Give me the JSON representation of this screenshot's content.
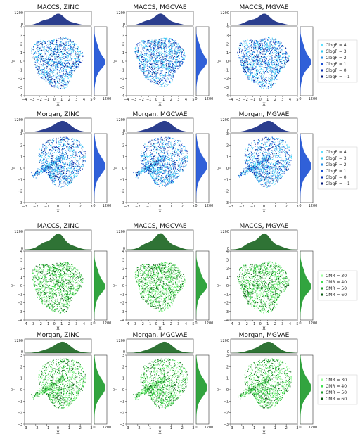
{
  "chart_data": [
    {
      "type": "scatter",
      "title": "MACCS, ZINC",
      "xlabel": "X",
      "ylabel": "Y",
      "xticks": [
        "−4",
        "−3",
        "−2",
        "−1",
        "0",
        "1",
        "2",
        "3",
        "4",
        "5"
      ],
      "yticks": [
        "−4",
        "−3",
        "−2",
        "−1",
        "0",
        "1",
        "2",
        "3",
        "4"
      ],
      "xlim": [
        -4,
        5
      ],
      "ylim": [
        -4,
        4.6
      ],
      "hist_ticks": [
        "0",
        "1200"
      ],
      "legend": [
        "ClogP = 4",
        "ClogP = 3",
        "ClogP = 2",
        "ClogP = 1",
        "ClogP = 0",
        "ClogP = −1"
      ],
      "colors": [
        "#5fe0ff",
        "#2fc9f2",
        "#2a8ee6",
        "#1a4fd4",
        "#0b2fb0",
        "#061c7a"
      ],
      "cloud": {
        "shape": "blob",
        "cx": 0.3,
        "cy": 0.4,
        "rx": 3.3,
        "ry": 3.1
      }
    },
    {
      "type": "scatter",
      "title": "MACCS, MGCVAE",
      "xlabel": "X",
      "ylabel": "Y",
      "xticks": [
        "−4",
        "−3",
        "−2",
        "−1",
        "0",
        "1",
        "2",
        "3",
        "4",
        "5"
      ],
      "yticks": [
        "−4",
        "−3",
        "−2",
        "−1",
        "0",
        "1",
        "2",
        "3",
        "4"
      ],
      "xlim": [
        -4,
        5
      ],
      "ylim": [
        -4,
        4.6
      ],
      "hist_ticks": [
        "0",
        "1200"
      ],
      "legend": [],
      "colors": [
        "#5fe0ff",
        "#2fc9f2",
        "#2a8ee6",
        "#1a4fd4",
        "#0b2fb0",
        "#061c7a"
      ],
      "cloud": {
        "shape": "blob",
        "cx": 0.4,
        "cy": 0.5,
        "rx": 3.2,
        "ry": 3.0
      }
    },
    {
      "type": "scatter",
      "title": "MACCS, MGVAE",
      "xlabel": "X",
      "ylabel": "Y",
      "xticks": [
        "−4",
        "−3",
        "−2",
        "−1",
        "0",
        "1",
        "2",
        "3",
        "4",
        "5"
      ],
      "yticks": [
        "−4",
        "−3",
        "−2",
        "−1",
        "0",
        "1",
        "2",
        "3",
        "4"
      ],
      "xlim": [
        -4,
        5
      ],
      "ylim": [
        -4,
        4.6
      ],
      "hist_ticks": [
        "0",
        "1200"
      ],
      "legend": [],
      "colors": [
        "#5fe0ff",
        "#2fc9f2",
        "#2a8ee6",
        "#1a4fd4",
        "#0b2fb0",
        "#061c7a"
      ],
      "cloud": {
        "shape": "blob",
        "cx": 0.3,
        "cy": 0.4,
        "rx": 3.3,
        "ry": 3.1
      }
    },
    {
      "type": "scatter",
      "title": "Morgan, ZINC",
      "xlabel": "X",
      "ylabel": "Y",
      "xticks": [
        "−3",
        "−2",
        "−1",
        "0",
        "1",
        "2",
        "3"
      ],
      "yticks": [
        "−3",
        "−2",
        "−1",
        "0",
        "1",
        "2",
        "3"
      ],
      "xlim": [
        -3,
        3
      ],
      "ylim": [
        -3,
        3
      ],
      "hist_ticks": [
        "0",
        "1200"
      ],
      "legend": [
        "ClogP = 4",
        "ClogP = 3",
        "ClogP = 2",
        "ClogP = 1",
        "ClogP = 0",
        "ClogP = −1"
      ],
      "colors": [
        "#5fe0ff",
        "#2fc9f2",
        "#2a8ee6",
        "#1a4fd4",
        "#0b2fb0",
        "#061c7a"
      ],
      "cloud": {
        "shape": "kite",
        "cx": 0.2,
        "cy": 0.3,
        "rx": 2.2,
        "ry": 2.3
      }
    },
    {
      "type": "scatter",
      "title": "Morgan, MGCVAE",
      "xlabel": "X",
      "ylabel": "Y",
      "xticks": [
        "−3",
        "−2",
        "−1",
        "0",
        "1",
        "2",
        "3"
      ],
      "yticks": [
        "−3",
        "−2",
        "−1",
        "0",
        "1",
        "2",
        "3"
      ],
      "xlim": [
        -3,
        3
      ],
      "ylim": [
        -3,
        3
      ],
      "hist_ticks": [
        "0",
        "1200"
      ],
      "legend": [],
      "colors": [
        "#5fe0ff",
        "#2fc9f2",
        "#2a8ee6",
        "#1a4fd4",
        "#0b2fb0",
        "#061c7a"
      ],
      "cloud": {
        "shape": "kite",
        "cx": 0.2,
        "cy": 0.3,
        "rx": 2.2,
        "ry": 2.3
      }
    },
    {
      "type": "scatter",
      "title": "Morgan, MGVAE",
      "xlabel": "X",
      "ylabel": "Y",
      "xticks": [
        "−3",
        "−2",
        "−1",
        "0",
        "1",
        "2",
        "3"
      ],
      "yticks": [
        "−3",
        "−2",
        "−1",
        "0",
        "1",
        "2",
        "3"
      ],
      "xlim": [
        -3,
        3
      ],
      "ylim": [
        -3,
        3
      ],
      "hist_ticks": [
        "0",
        "1200"
      ],
      "legend": [],
      "colors": [
        "#5fe0ff",
        "#2fc9f2",
        "#2a8ee6",
        "#1a4fd4",
        "#0b2fb0",
        "#061c7a"
      ],
      "cloud": {
        "shape": "kite",
        "cx": 0.2,
        "cy": 0.3,
        "rx": 2.2,
        "ry": 2.3
      }
    },
    {
      "type": "scatter",
      "title": "MACCS, ZINC",
      "xlabel": "X",
      "ylabel": "Y",
      "xticks": [
        "−4",
        "−3",
        "−2",
        "−1",
        "0",
        "1",
        "2",
        "3",
        "4",
        "5"
      ],
      "yticks": [
        "−4",
        "−3",
        "−2",
        "−1",
        "0",
        "1",
        "2",
        "3",
        "4"
      ],
      "xlim": [
        -4,
        5
      ],
      "ylim": [
        -4,
        4.6
      ],
      "hist_ticks": [
        "0",
        "1200"
      ],
      "legend": [
        "CMR = 30",
        "CMR = 40",
        "CMR = 50",
        "CMR = 60"
      ],
      "colors": [
        "#9dff9d",
        "#3fe04f",
        "#1c9a2a",
        "#0a5a12"
      ],
      "cloud": {
        "shape": "blob",
        "cx": 0.3,
        "cy": 0.4,
        "rx": 3.3,
        "ry": 3.1
      }
    },
    {
      "type": "scatter",
      "title": "MACCS, MGCVAE",
      "xlabel": "X",
      "ylabel": "Y",
      "xticks": [
        "−4",
        "−3",
        "−2",
        "−1",
        "0",
        "1",
        "2",
        "3",
        "4",
        "5"
      ],
      "yticks": [
        "−4",
        "−3",
        "−2",
        "−1",
        "0",
        "1",
        "2",
        "3",
        "4"
      ],
      "xlim": [
        -4,
        5
      ],
      "ylim": [
        -4,
        4.6
      ],
      "hist_ticks": [
        "0",
        "1200"
      ],
      "legend": [],
      "colors": [
        "#9dff9d",
        "#3fe04f",
        "#1c9a2a",
        "#0a5a12"
      ],
      "cloud": {
        "shape": "blob",
        "cx": 0.4,
        "cy": 0.5,
        "rx": 3.2,
        "ry": 3.0
      }
    },
    {
      "type": "scatter",
      "title": "MACCS, MGVAE",
      "xlabel": "X",
      "ylabel": "Y",
      "xticks": [
        "−4",
        "−3",
        "−2",
        "−1",
        "0",
        "1",
        "2",
        "3",
        "4",
        "5"
      ],
      "yticks": [
        "−4",
        "−3",
        "−2",
        "−1",
        "0",
        "1",
        "2",
        "3",
        "4"
      ],
      "xlim": [
        -4,
        5
      ],
      "ylim": [
        -4,
        4.6
      ],
      "hist_ticks": [
        "0",
        "1200"
      ],
      "legend": [],
      "colors": [
        "#9dff9d",
        "#3fe04f",
        "#1c9a2a",
        "#0a5a12"
      ],
      "cloud": {
        "shape": "blob",
        "cx": 0.3,
        "cy": 0.4,
        "rx": 3.3,
        "ry": 3.1
      }
    },
    {
      "type": "scatter",
      "title": "Morgan, ZINC",
      "xlabel": "X",
      "ylabel": "Y",
      "xticks": [
        "−3",
        "−2",
        "−1",
        "0",
        "1",
        "2",
        "3"
      ],
      "yticks": [
        "−3",
        "−2",
        "−1",
        "0",
        "1",
        "2",
        "3"
      ],
      "xlim": [
        -3,
        3
      ],
      "ylim": [
        -3,
        3
      ],
      "hist_ticks": [
        "0",
        "1200"
      ],
      "legend": [
        "CMR = 30",
        "CMR = 40",
        "CMR = 50",
        "CMR = 60"
      ],
      "colors": [
        "#9dff9d",
        "#3fe04f",
        "#1c9a2a",
        "#0a5a12"
      ],
      "cloud": {
        "shape": "kite",
        "cx": 0.2,
        "cy": 0.3,
        "rx": 2.2,
        "ry": 2.3
      }
    },
    {
      "type": "scatter",
      "title": "Morgan, MGCVAE",
      "xlabel": "X",
      "ylabel": "Y",
      "xticks": [
        "−3",
        "−2",
        "−1",
        "0",
        "1",
        "2",
        "3"
      ],
      "yticks": [
        "−3",
        "−2",
        "−1",
        "0",
        "1",
        "2",
        "3"
      ],
      "xlim": [
        -3,
        3
      ],
      "ylim": [
        -3,
        3
      ],
      "hist_ticks": [
        "0",
        "1200"
      ],
      "legend": [],
      "colors": [
        "#9dff9d",
        "#3fe04f",
        "#1c9a2a",
        "#0a5a12"
      ],
      "cloud": {
        "shape": "kite",
        "cx": 0.2,
        "cy": 0.3,
        "rx": 2.2,
        "ry": 2.3
      }
    },
    {
      "type": "scatter",
      "title": "Morgan, MGVAE",
      "xlabel": "X",
      "ylabel": "Y",
      "xticks": [
        "−3",
        "−2",
        "−1",
        "0",
        "1",
        "2",
        "3"
      ],
      "yticks": [
        "−3",
        "−2",
        "−1",
        "0",
        "1",
        "2",
        "3"
      ],
      "xlim": [
        -3,
        3
      ],
      "ylim": [
        -3,
        3
      ],
      "hist_ticks": [
        "0",
        "1200"
      ],
      "legend": [],
      "colors": [
        "#9dff9d",
        "#3fe04f",
        "#1c9a2a",
        "#0a5a12"
      ],
      "cloud": {
        "shape": "kite",
        "cx": 0.2,
        "cy": 0.3,
        "rx": 2.2,
        "ry": 2.3
      }
    }
  ]
}
